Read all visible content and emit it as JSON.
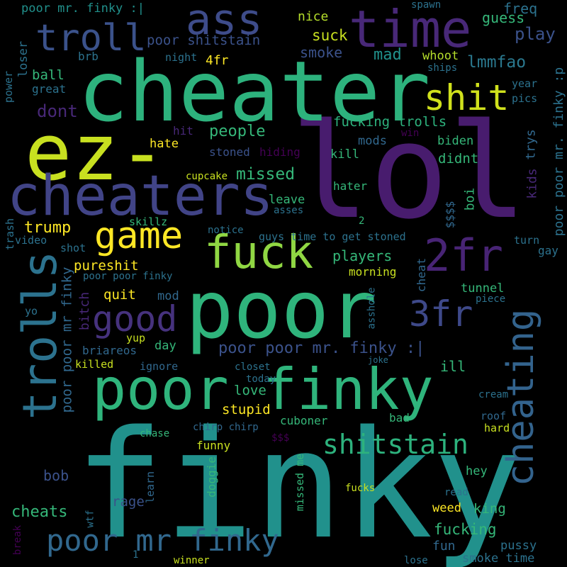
{
  "palette": {
    "background": "#000000",
    "dark_purple": "#440154",
    "indigo": "#3b528b",
    "blue": "#31688e",
    "teal": "#21918c",
    "green": "#35b779",
    "light_green": "#90d743",
    "yellow": "#fde725"
  },
  "words": [
    {
      "text": "finky",
      "color": "#21918c"
    },
    {
      "text": "lol",
      "color": "#481c6e"
    },
    {
      "text": "poor",
      "color": "#2fb47c"
    },
    {
      "text": "cheater",
      "color": "#2db27d"
    },
    {
      "text": "ez-",
      "color": "#c8e020"
    },
    {
      "text": "cheaters",
      "color": "#414487"
    },
    {
      "text": "poor finky",
      "color": "#2fb47c"
    },
    {
      "text": "time",
      "color": "#482878"
    },
    {
      "text": "ass",
      "color": "#3e4c8a"
    },
    {
      "text": "troll",
      "color": "#3b528b"
    },
    {
      "text": "shit",
      "color": "#d0e11c"
    },
    {
      "text": "game",
      "color": "#fde725"
    },
    {
      "text": "fuck",
      "color": "#90d743"
    },
    {
      "text": "2fr",
      "color": "#482475"
    },
    {
      "text": "trolls",
      "color": "#2c728e"
    },
    {
      "text": "good",
      "color": "#46327e"
    },
    {
      "text": "3fr",
      "color": "#3e4989"
    },
    {
      "text": "cheating",
      "color": "#33638d"
    },
    {
      "text": "shitstain",
      "color": "#2db27d"
    },
    {
      "text": "poor mr finky",
      "color": "#31688e"
    },
    {
      "text": "poor mr. finky :|",
      "color": "#21918c"
    },
    {
      "text": "poor shitstain",
      "color": "#3b528b"
    },
    {
      "text": "nice",
      "color": "#b5de2b"
    },
    {
      "text": "suck",
      "color": "#c8e020"
    },
    {
      "text": "smoke",
      "color": "#3b528b"
    },
    {
      "text": "mad",
      "color": "#21918c"
    },
    {
      "text": "spawn",
      "color": "#2c728e"
    },
    {
      "text": "guess",
      "color": "#35b779"
    },
    {
      "text": "freq",
      "color": "#2c728e"
    },
    {
      "text": "play",
      "color": "#3b528b"
    },
    {
      "text": "lmmfao",
      "color": "#2a788e"
    },
    {
      "text": "whoot",
      "color": "#b5de2b"
    },
    {
      "text": "ships",
      "color": "#2c728e"
    },
    {
      "text": "year",
      "color": "#2c728e"
    },
    {
      "text": "pics",
      "color": "#2c728e"
    },
    {
      "text": "loser",
      "color": "#2c728e"
    },
    {
      "text": "brb",
      "color": "#2c728e"
    },
    {
      "text": "night",
      "color": "#2c728e"
    },
    {
      "text": "4fr",
      "color": "#fde725"
    },
    {
      "text": "ball",
      "color": "#35b779"
    },
    {
      "text": "great",
      "color": "#2c728e"
    },
    {
      "text": "power",
      "color": "#2c728e"
    },
    {
      "text": "dont",
      "color": "#482878"
    },
    {
      "text": "people",
      "color": "#35b779"
    },
    {
      "text": "hit",
      "color": "#482878"
    },
    {
      "text": "hate",
      "color": "#fde725"
    },
    {
      "text": "stoned",
      "color": "#3b528b"
    },
    {
      "text": "hiding",
      "color": "#440154"
    },
    {
      "text": "fucking trolls",
      "color": "#2db27d"
    },
    {
      "text": "mods",
      "color": "#31688e"
    },
    {
      "text": "win",
      "color": "#440154"
    },
    {
      "text": "biden",
      "color": "#35b779"
    },
    {
      "text": "trys",
      "color": "#31688e"
    },
    {
      "text": "poor poor mr. finky :p",
      "color": "#2c728e"
    },
    {
      "text": "kill",
      "color": "#35b779"
    },
    {
      "text": "didnt",
      "color": "#35b779"
    },
    {
      "text": "missed",
      "color": "#35b779"
    },
    {
      "text": "cupcake",
      "color": "#c8e020"
    },
    {
      "text": "kids",
      "color": "#482878"
    },
    {
      "text": "$$$$",
      "color": "#31688e"
    },
    {
      "text": "boi",
      "color": "#35b779"
    },
    {
      "text": "hater",
      "color": "#35b779"
    },
    {
      "text": "trump",
      "color": "#fde725"
    },
    {
      "text": "skillz",
      "color": "#35b779"
    },
    {
      "text": "leave",
      "color": "#35b779"
    },
    {
      "text": "asses",
      "color": "#2c728e"
    },
    {
      "text": "notice",
      "color": "#2c728e"
    },
    {
      "text": "2",
      "color": "#35b779"
    },
    {
      "text": "trash",
      "color": "#2c728e"
    },
    {
      "text": "video",
      "color": "#2c728e"
    },
    {
      "text": "shot",
      "color": "#2c728e"
    },
    {
      "text": "guys time to get stoned",
      "color": "#2c728e"
    },
    {
      "text": "turn",
      "color": "#2c728e"
    },
    {
      "text": "gay",
      "color": "#2c728e"
    },
    {
      "text": "pureshit",
      "color": "#fde725"
    },
    {
      "text": "players",
      "color": "#35b779"
    },
    {
      "text": "morning",
      "color": "#c8e020"
    },
    {
      "text": "cheat",
      "color": "#31688e"
    },
    {
      "text": "poor poor finky",
      "color": "#2c728e"
    },
    {
      "text": "poor poor mr finky",
      "color": "#31688e"
    },
    {
      "text": "bitch",
      "color": "#482878"
    },
    {
      "text": "quit",
      "color": "#fde725"
    },
    {
      "text": "mod",
      "color": "#31688e"
    },
    {
      "text": "asshole",
      "color": "#2c728e"
    },
    {
      "text": "tunnel",
      "color": "#35b779"
    },
    {
      "text": "piece",
      "color": "#2c728e"
    },
    {
      "text": "yo",
      "color": "#2c728e"
    },
    {
      "text": "yup",
      "color": "#c8e020"
    },
    {
      "text": "day",
      "color": "#35b779"
    },
    {
      "text": "briareos",
      "color": "#31688e"
    },
    {
      "text": "poor poor mr. finky :|",
      "color": "#3b528b"
    },
    {
      "text": "killed",
      "color": "#c8e020"
    },
    {
      "text": "ignore",
      "color": "#31688e"
    },
    {
      "text": "closet",
      "color": "#2c728e"
    },
    {
      "text": "joke",
      "color": "#2c728e"
    },
    {
      "text": "ill",
      "color": "#35b779"
    },
    {
      "text": "today",
      "color": "#2c728e"
    },
    {
      "text": "love",
      "color": "#35b779"
    },
    {
      "text": "stupid",
      "color": "#fde725"
    },
    {
      "text": "cream",
      "color": "#2c728e"
    },
    {
      "text": "chase",
      "color": "#35b779"
    },
    {
      "text": "chirp chirp",
      "color": "#31688e"
    },
    {
      "text": "$$$",
      "color": "#440154"
    },
    {
      "text": "cuboner",
      "color": "#35b779"
    },
    {
      "text": "bad",
      "color": "#35b779"
    },
    {
      "text": "roof",
      "color": "#31688e"
    },
    {
      "text": "hard",
      "color": "#c8e020"
    },
    {
      "text": "funny",
      "color": "#c8e020"
    },
    {
      "text": "missed me",
      "color": "#35b779"
    },
    {
      "text": "doggie",
      "color": "#35b779"
    },
    {
      "text": "learn",
      "color": "#31688e"
    },
    {
      "text": "bob",
      "color": "#3b528b"
    },
    {
      "text": "hey",
      "color": "#35b779"
    },
    {
      "text": "rage",
      "color": "#3b528b"
    },
    {
      "text": "read",
      "color": "#2c728e"
    },
    {
      "text": "fucks",
      "color": "#c8e020"
    },
    {
      "text": "cheats",
      "color": "#35b779"
    },
    {
      "text": "weed",
      "color": "#fde725"
    },
    {
      "text": "king",
      "color": "#35b779"
    },
    {
      "text": "fucking",
      "color": "#35b779"
    },
    {
      "text": "wtf",
      "color": "#2c728e"
    },
    {
      "text": "break",
      "color": "#440154"
    },
    {
      "text": "1",
      "color": "#2c728e"
    },
    {
      "text": "winner",
      "color": "#c8e020"
    },
    {
      "text": "lose",
      "color": "#2c728e"
    },
    {
      "text": "fun",
      "color": "#31688e"
    },
    {
      "text": "smoke time",
      "color": "#2c728e"
    },
    {
      "text": "pussy",
      "color": "#2c728e"
    }
  ]
}
